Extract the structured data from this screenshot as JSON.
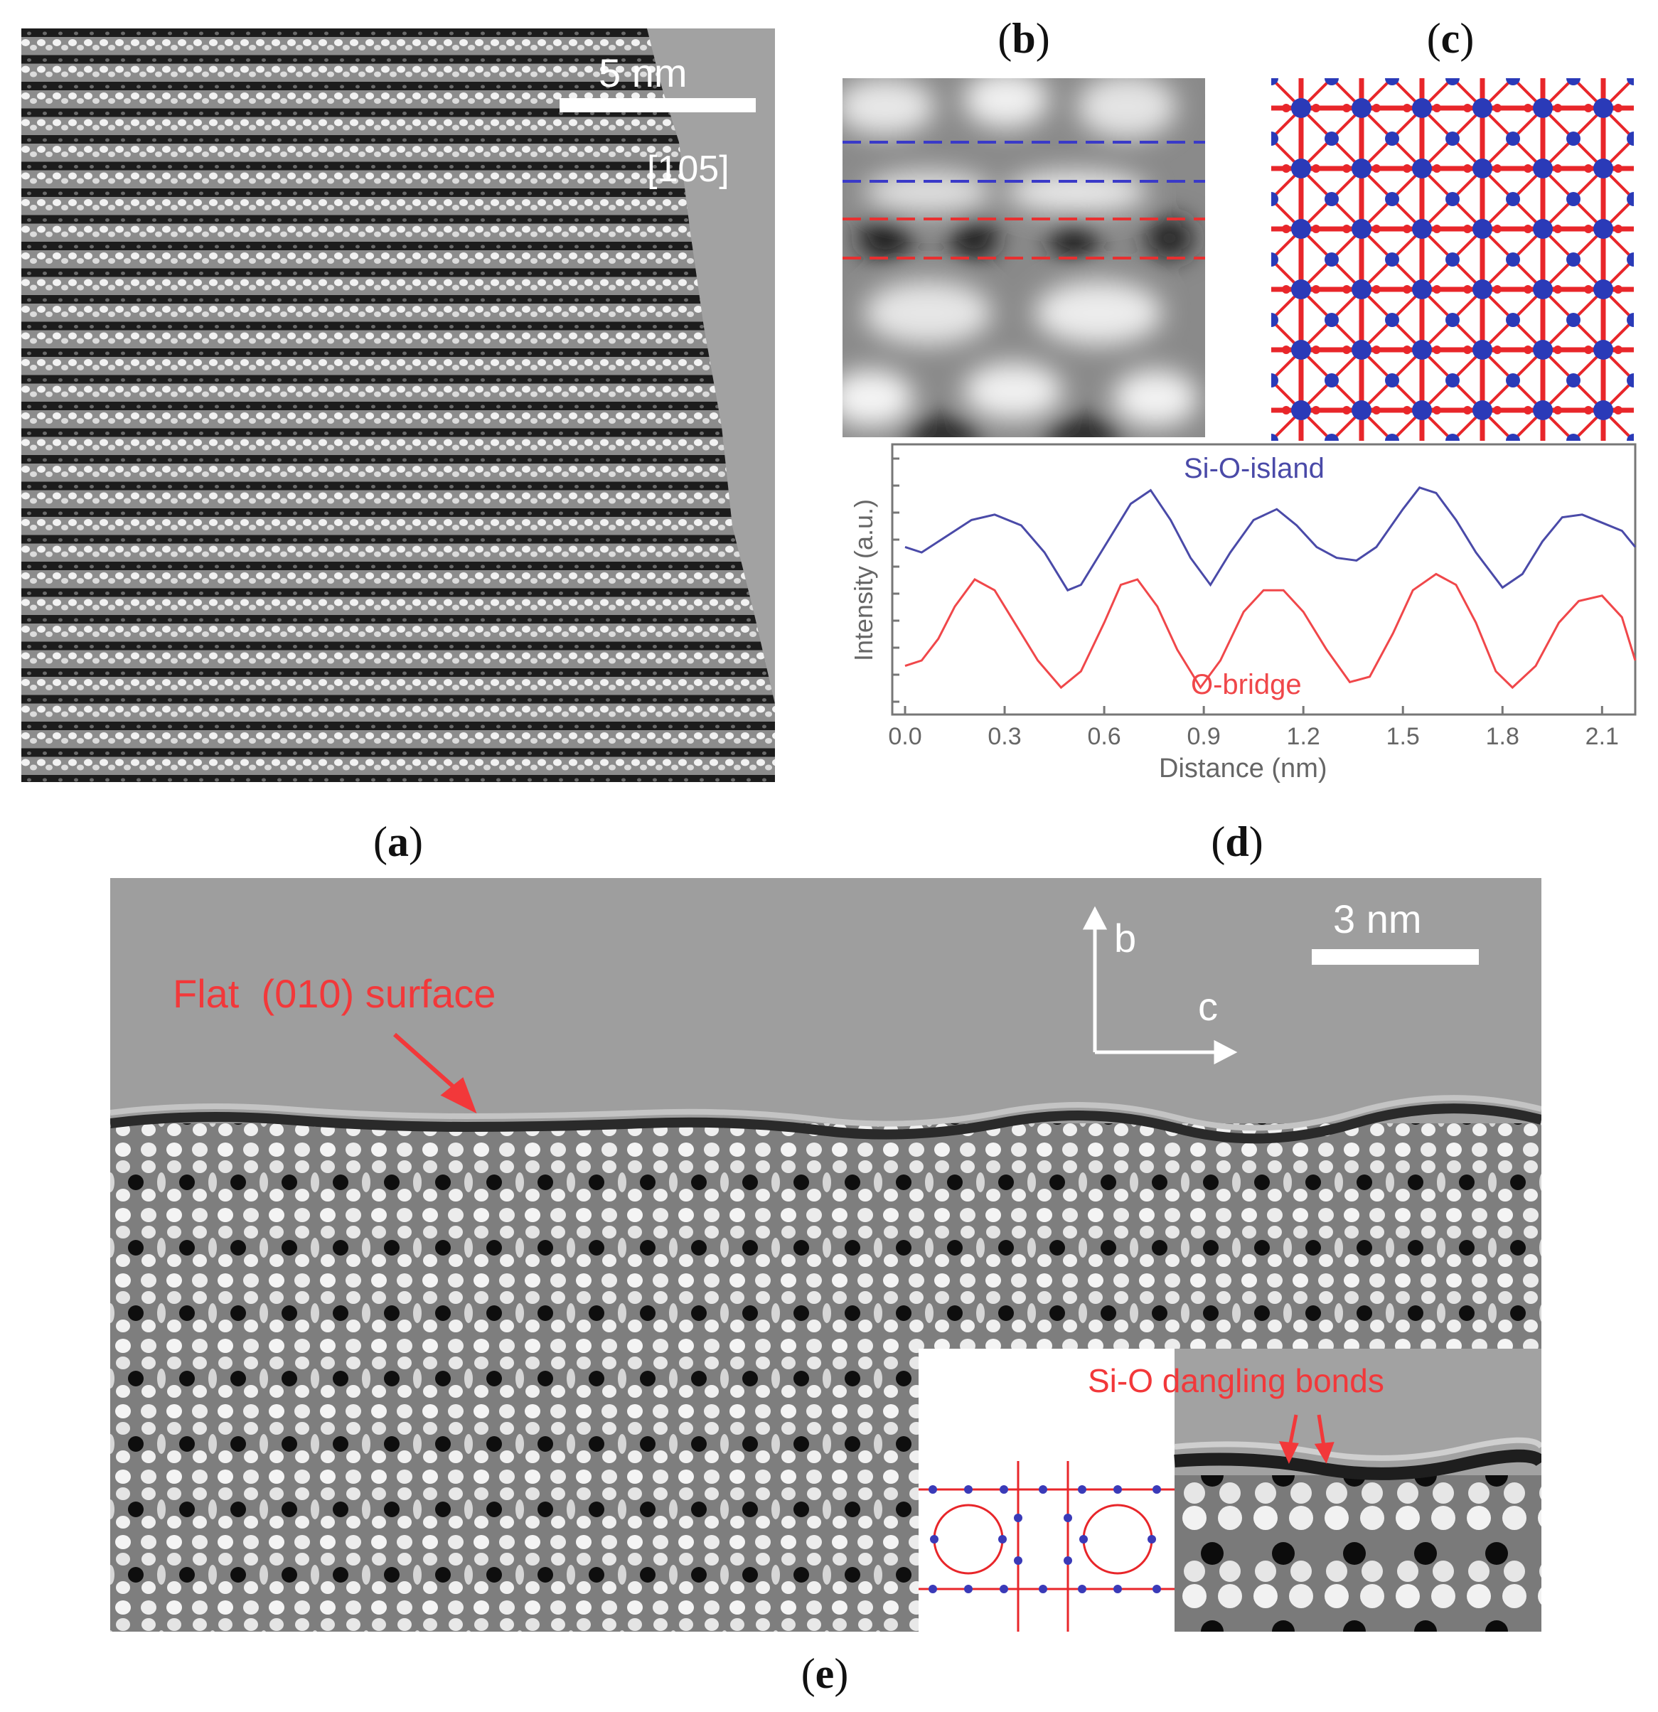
{
  "panels": {
    "a": {
      "label": "a",
      "scale_bar": "5 nm",
      "zone_axis": "[105]"
    },
    "b": {
      "label": "b"
    },
    "c": {
      "label": "c"
    },
    "d": {
      "label": "d"
    },
    "e": {
      "label": "e",
      "scale_bar": "3 nm",
      "axis_b": "b",
      "axis_c": "c",
      "annotation": "Flat  (010) surface",
      "inset_annotation": "Si-O dangling bonds"
    }
  },
  "colors": {
    "si_o_island": "#4a4aa8",
    "o_bridge": "#f0474a",
    "atoms_si": "#2a3ab8",
    "atoms_o": "#e8262a"
  },
  "chart_data": {
    "type": "line",
    "xlabel": "Distance (nm)",
    "ylabel": "Intensity (a.u.)",
    "xlim": [
      0.0,
      2.2
    ],
    "xticks": [
      "0.0",
      "0.3",
      "0.6",
      "0.9",
      "1.2",
      "1.5",
      "1.8",
      "2.1"
    ],
    "y_tick_labels_shown": false,
    "series": [
      {
        "name": "Si-O-island",
        "color": "#4a4aa8",
        "x": [
          0.0,
          0.05,
          0.1,
          0.15,
          0.2,
          0.27,
          0.35,
          0.42,
          0.49,
          0.53,
          0.6,
          0.68,
          0.74,
          0.8,
          0.86,
          0.92,
          0.98,
          1.05,
          1.12,
          1.18,
          1.24,
          1.3,
          1.36,
          1.42,
          1.5,
          1.55,
          1.6,
          1.66,
          1.72,
          1.8,
          1.86,
          1.92,
          1.98,
          2.04,
          2.1,
          2.16,
          2.2
        ],
        "y": [
          0.62,
          0.6,
          0.64,
          0.68,
          0.72,
          0.74,
          0.7,
          0.6,
          0.46,
          0.48,
          0.62,
          0.78,
          0.83,
          0.72,
          0.58,
          0.48,
          0.6,
          0.72,
          0.76,
          0.7,
          0.62,
          0.58,
          0.57,
          0.62,
          0.76,
          0.84,
          0.82,
          0.72,
          0.6,
          0.47,
          0.52,
          0.64,
          0.73,
          0.74,
          0.71,
          0.68,
          0.62
        ]
      },
      {
        "name": "O-bridge",
        "color": "#f0474a",
        "x": [
          0.0,
          0.05,
          0.1,
          0.15,
          0.21,
          0.27,
          0.33,
          0.4,
          0.47,
          0.53,
          0.6,
          0.65,
          0.7,
          0.76,
          0.82,
          0.89,
          0.95,
          1.02,
          1.08,
          1.14,
          1.2,
          1.27,
          1.34,
          1.4,
          1.47,
          1.53,
          1.6,
          1.66,
          1.72,
          1.78,
          1.83,
          1.9,
          1.97,
          2.03,
          2.1,
          2.16,
          2.2
        ],
        "y": [
          0.18,
          0.2,
          0.28,
          0.4,
          0.5,
          0.46,
          0.34,
          0.2,
          0.1,
          0.16,
          0.34,
          0.48,
          0.5,
          0.4,
          0.24,
          0.1,
          0.2,
          0.38,
          0.46,
          0.46,
          0.38,
          0.24,
          0.12,
          0.14,
          0.3,
          0.46,
          0.52,
          0.48,
          0.34,
          0.16,
          0.1,
          0.18,
          0.34,
          0.42,
          0.44,
          0.36,
          0.2
        ]
      }
    ]
  }
}
